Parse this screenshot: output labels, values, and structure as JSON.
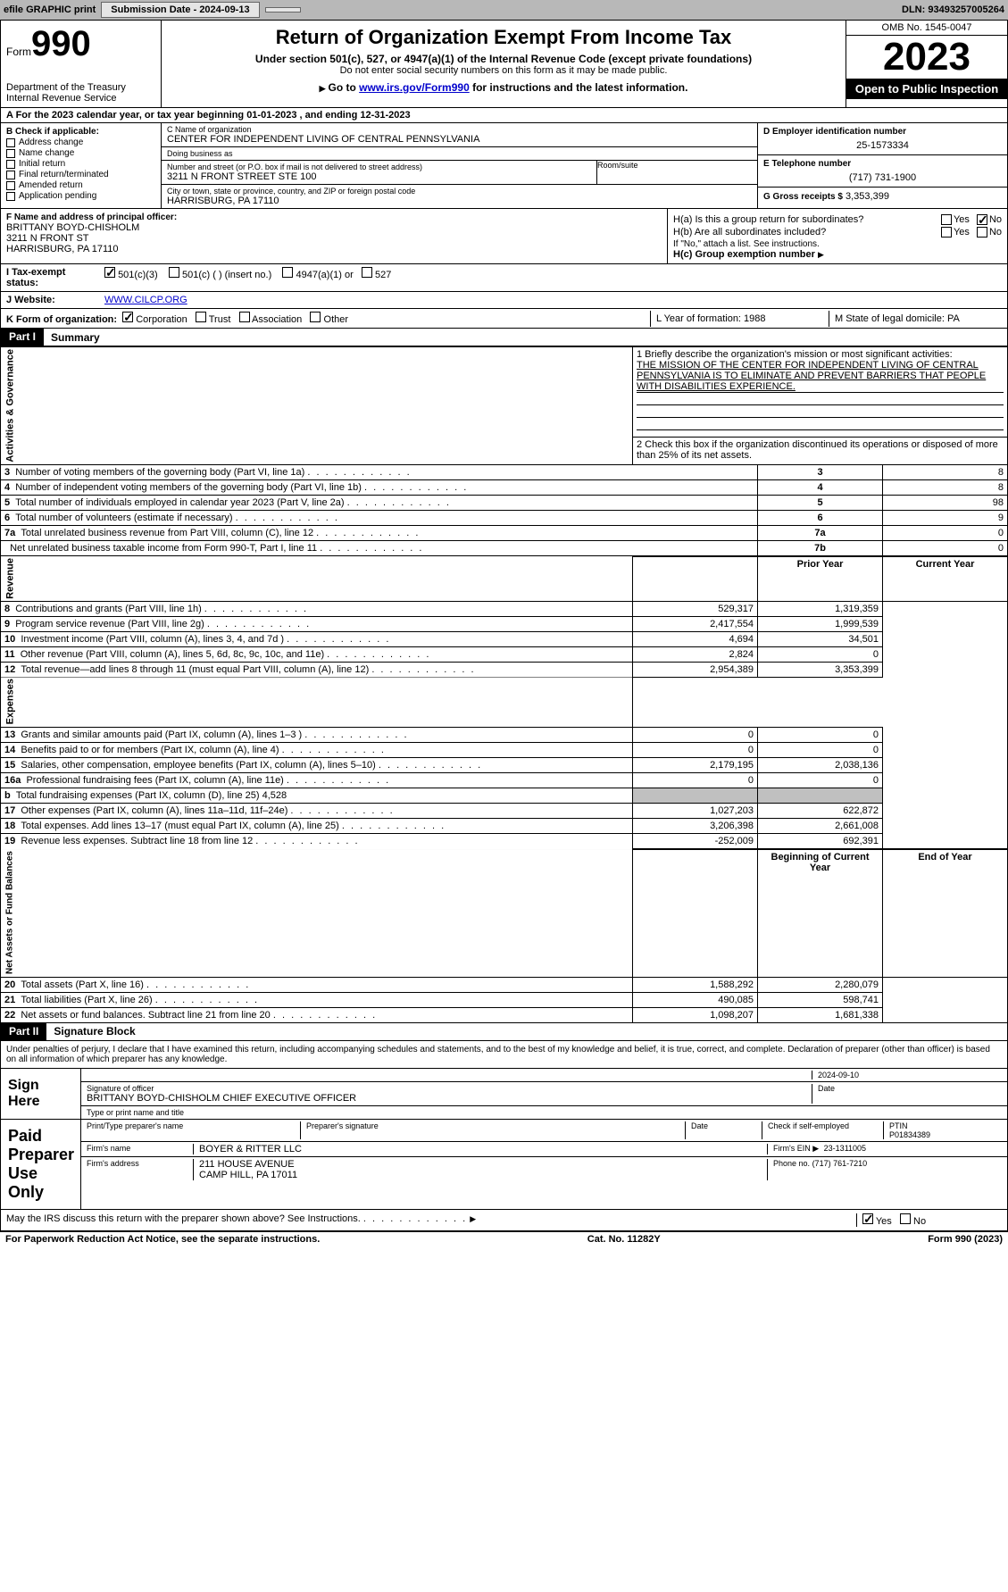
{
  "topbar": {
    "efile": "efile GRAPHIC print",
    "submission": "Submission Date - 2024-09-13",
    "dln": "DLN: 93493257005264"
  },
  "header": {
    "form_word": "Form",
    "form_number": "990",
    "dept": "Department of the Treasury",
    "irs": "Internal Revenue Service",
    "title": "Return of Organization Exempt From Income Tax",
    "sub1": "Under section 501(c), 527, or 4947(a)(1) of the Internal Revenue Code (except private foundations)",
    "sub2": "Do not enter social security numbers on this form as it may be made public.",
    "goto_pre": "Go to ",
    "goto_link": "www.irs.gov/Form990",
    "goto_post": " for instructions and the latest information.",
    "omb": "OMB No. 1545-0047",
    "year": "2023",
    "public": "Open to Public Inspection"
  },
  "row_a": "A For the 2023 calendar year, or tax year beginning 01-01-2023    , and ending 12-31-2023",
  "col_b": {
    "title": "B Check if applicable:",
    "opts": [
      "Address change",
      "Name change",
      "Initial return",
      "Final return/terminated",
      "Amended return",
      "Application pending"
    ]
  },
  "col_c": {
    "name_label": "C Name of organization",
    "name": "CENTER FOR INDEPENDENT LIVING OF CENTRAL PENNSYLVANIA",
    "dba_label": "Doing business as",
    "dba": "",
    "street_label": "Number and street (or P.O. box if mail is not delivered to street address)",
    "street": "3211 N FRONT STREET STE 100",
    "room_label": "Room/suite",
    "city_label": "City or town, state or province, country, and ZIP or foreign postal code",
    "city": "HARRISBURG, PA  17110"
  },
  "col_de": {
    "d_label": "D Employer identification number",
    "d_val": "25-1573334",
    "e_label": "E Telephone number",
    "e_val": "(717) 731-1900",
    "g_label": "G Gross receipts $",
    "g_val": "3,353,399"
  },
  "row_f": {
    "f_label": "F Name and address of principal officer:",
    "f_name": "BRITTANY BOYD-CHISHOLM",
    "f_street": "3211 N FRONT ST",
    "f_city": "HARRISBURG, PA  17110",
    "ha": "H(a)  Is this a group return for subordinates?",
    "hb": "H(b)  Are all subordinates included?",
    "hb_note": "If \"No,\" attach a list. See instructions.",
    "hc": "H(c)  Group exemption number",
    "yes": "Yes",
    "no": "No"
  },
  "row_i": {
    "label": "I  Tax-exempt status:",
    "o1": "501(c)(3)",
    "o2": "501(c) (   ) (insert no.)",
    "o3": "4947(a)(1) or",
    "o4": "527"
  },
  "row_j": {
    "label": "J  Website:",
    "val": "WWW.CILCP.ORG"
  },
  "row_k": {
    "label": "K Form of organization:",
    "o1": "Corporation",
    "o2": "Trust",
    "o3": "Association",
    "o4": "Other",
    "l": "L Year of formation: 1988",
    "m": "M State of legal domicile: PA"
  },
  "part1": {
    "hdr": "Part I",
    "title": "Summary",
    "side_ag": "Activities & Governance",
    "side_rev": "Revenue",
    "side_exp": "Expenses",
    "side_na": "Net Assets or Fund Balances",
    "l1_label": "1  Briefly describe the organization's mission or most significant activities:",
    "l1_text": "THE MISSION OF THE CENTER FOR INDEPENDENT LIVING OF CENTRAL PENNSYLVANIA IS TO ELIMINATE AND PREVENT BARRIERS THAT PEOPLE WITH DISABILITIES EXPERIENCE.",
    "l2": "2   Check this box          if the organization discontinued its operations or disposed of more than 25% of its net assets.",
    "lines_ag": [
      {
        "n": "3",
        "t": "Number of voting members of the governing body (Part VI, line 1a)",
        "k": "3",
        "v": "8"
      },
      {
        "n": "4",
        "t": "Number of independent voting members of the governing body (Part VI, line 1b)",
        "k": "4",
        "v": "8"
      },
      {
        "n": "5",
        "t": "Total number of individuals employed in calendar year 2023 (Part V, line 2a)",
        "k": "5",
        "v": "98"
      },
      {
        "n": "6",
        "t": "Total number of volunteers (estimate if necessary)",
        "k": "6",
        "v": "9"
      },
      {
        "n": "7a",
        "t": "Total unrelated business revenue from Part VIII, column (C), line 12",
        "k": "7a",
        "v": "0"
      },
      {
        "n": "",
        "t": "Net unrelated business taxable income from Form 990-T, Part I, line 11",
        "k": "7b",
        "v": "0"
      }
    ],
    "prior_hdr": "Prior Year",
    "curr_hdr": "Current Year",
    "lines_rev": [
      {
        "n": "8",
        "t": "Contributions and grants (Part VIII, line 1h)",
        "p": "529,317",
        "c": "1,319,359"
      },
      {
        "n": "9",
        "t": "Program service revenue (Part VIII, line 2g)",
        "p": "2,417,554",
        "c": "1,999,539"
      },
      {
        "n": "10",
        "t": "Investment income (Part VIII, column (A), lines 3, 4, and 7d )",
        "p": "4,694",
        "c": "34,501"
      },
      {
        "n": "11",
        "t": "Other revenue (Part VIII, column (A), lines 5, 6d, 8c, 9c, 10c, and 11e)",
        "p": "2,824",
        "c": "0"
      },
      {
        "n": "12",
        "t": "Total revenue—add lines 8 through 11 (must equal Part VIII, column (A), line 12)",
        "p": "2,954,389",
        "c": "3,353,399"
      }
    ],
    "lines_exp": [
      {
        "n": "13",
        "t": "Grants and similar amounts paid (Part IX, column (A), lines 1–3 )",
        "p": "0",
        "c": "0"
      },
      {
        "n": "14",
        "t": "Benefits paid to or for members (Part IX, column (A), line 4)",
        "p": "0",
        "c": "0"
      },
      {
        "n": "15",
        "t": "Salaries, other compensation, employee benefits (Part IX, column (A), lines 5–10)",
        "p": "2,179,195",
        "c": "2,038,136"
      },
      {
        "n": "16a",
        "t": "Professional fundraising fees (Part IX, column (A), line 11e)",
        "p": "0",
        "c": "0"
      },
      {
        "n": "b",
        "t": "Total fundraising expenses (Part IX, column (D), line 25) 4,528",
        "p": "",
        "c": "",
        "shaded": true
      },
      {
        "n": "17",
        "t": "Other expenses (Part IX, column (A), lines 11a–11d, 11f–24e)",
        "p": "1,027,203",
        "c": "622,872"
      },
      {
        "n": "18",
        "t": "Total expenses. Add lines 13–17 (must equal Part IX, column (A), line 25)",
        "p": "3,206,398",
        "c": "2,661,008"
      },
      {
        "n": "19",
        "t": "Revenue less expenses. Subtract line 18 from line 12",
        "p": "-252,009",
        "c": "692,391"
      }
    ],
    "begin_hdr": "Beginning of Current Year",
    "end_hdr": "End of Year",
    "lines_na": [
      {
        "n": "20",
        "t": "Total assets (Part X, line 16)",
        "p": "1,588,292",
        "c": "2,280,079"
      },
      {
        "n": "21",
        "t": "Total liabilities (Part X, line 26)",
        "p": "490,085",
        "c": "598,741"
      },
      {
        "n": "22",
        "t": "Net assets or fund balances. Subtract line 21 from line 20",
        "p": "1,098,207",
        "c": "1,681,338"
      }
    ]
  },
  "part2": {
    "hdr": "Part II",
    "title": "Signature Block",
    "decl": "Under penalties of perjury, I declare that I have examined this return, including accompanying schedules and statements, and to the best of my knowledge and belief, it is true, correct, and complete. Declaration of preparer (other than officer) is based on all information of which preparer has any knowledge.",
    "sign_here": "Sign Here",
    "sig_date": "2024-09-10",
    "sig_officer_label": "Signature of officer",
    "sig_name": "BRITTANY BOYD-CHISHOLM  CHIEF EXECUTIVE OFFICER",
    "sig_name_label": "Type or print name and title",
    "date_label": "Date",
    "paid": "Paid Preparer Use Only",
    "prep_name_label": "Print/Type preparer's name",
    "prep_sig_label": "Preparer's signature",
    "prep_date_label": "Date",
    "prep_check": "Check          if self-employed",
    "ptin_label": "PTIN",
    "ptin": "P01834389",
    "firm_name_label": "Firm's name",
    "firm_name": "BOYER & RITTER LLC",
    "firm_ein_label": "Firm's EIN",
    "firm_ein": "23-1311005",
    "firm_addr_label": "Firm's address",
    "firm_addr1": "211 HOUSE AVENUE",
    "firm_addr2": "CAMP HILL, PA  17011",
    "phone_label": "Phone no.",
    "phone": "(717) 761-7210",
    "discuss": "May the IRS discuss this return with the preparer shown above? See Instructions.",
    "yes": "Yes",
    "no": "No"
  },
  "footer": {
    "left": "For Paperwork Reduction Act Notice, see the separate instructions.",
    "mid": "Cat. No. 11282Y",
    "right": "Form 990 (2023)"
  }
}
